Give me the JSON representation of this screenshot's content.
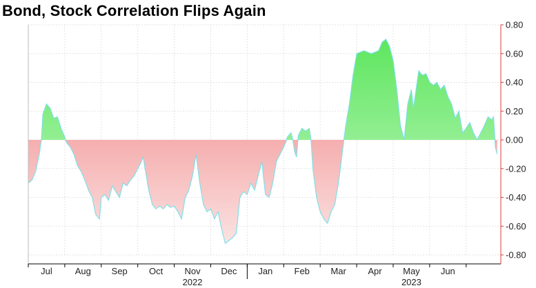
{
  "chart_data": {
    "type": "area",
    "title": "Bond, Stock Correlation Flips Again",
    "xlabel": "",
    "ylabel": "",
    "ylim": [
      -0.8,
      0.8
    ],
    "yticks": [
      "0.80",
      "0.60",
      "0.40",
      "0.20",
      "0.00",
      "-0.20",
      "-0.40",
      "-0.60",
      "-0.80"
    ],
    "month_labels": [
      "Jul",
      "Aug",
      "Sep",
      "Oct",
      "Nov",
      "Dec",
      "Jan",
      "Feb",
      "Mar",
      "Apr",
      "May",
      "Jun"
    ],
    "year_labels": [
      {
        "label": "2022",
        "month": "Sep-Dec"
      },
      {
        "label": "2023",
        "month": "Mar-Jun"
      }
    ],
    "grid": true,
    "axis_side": "right",
    "colors": {
      "positive": "#7ef07e",
      "negative": "#f08080",
      "line": "#7fe0e8",
      "zero": "#e0393a"
    },
    "x_units": "months since Jun 1, 2022",
    "series": [
      {
        "name": "",
        "points": [
          [
            0.0,
            -0.3
          ],
          [
            0.1,
            -0.28
          ],
          [
            0.2,
            -0.22
          ],
          [
            0.3,
            -0.1
          ],
          [
            0.36,
            0.0
          ],
          [
            0.4,
            0.18
          ],
          [
            0.5,
            0.25
          ],
          [
            0.6,
            0.22
          ],
          [
            0.7,
            0.15
          ],
          [
            0.8,
            0.16
          ],
          [
            0.9,
            0.08
          ],
          [
            1.0,
            0.02
          ],
          [
            1.05,
            -0.02
          ],
          [
            1.15,
            -0.05
          ],
          [
            1.25,
            -0.1
          ],
          [
            1.35,
            -0.18
          ],
          [
            1.45,
            -0.22
          ],
          [
            1.55,
            -0.28
          ],
          [
            1.65,
            -0.35
          ],
          [
            1.75,
            -0.4
          ],
          [
            1.85,
            -0.52
          ],
          [
            1.95,
            -0.55
          ],
          [
            2.0,
            -0.4
          ],
          [
            2.1,
            -0.38
          ],
          [
            2.2,
            -0.42
          ],
          [
            2.3,
            -0.32
          ],
          [
            2.4,
            -0.36
          ],
          [
            2.5,
            -0.4
          ],
          [
            2.6,
            -0.3
          ],
          [
            2.7,
            -0.32
          ],
          [
            2.8,
            -0.28
          ],
          [
            2.9,
            -0.25
          ],
          [
            3.0,
            -0.2
          ],
          [
            3.1,
            -0.15
          ],
          [
            3.15,
            -0.12
          ],
          [
            3.2,
            -0.2
          ],
          [
            3.3,
            -0.35
          ],
          [
            3.4,
            -0.45
          ],
          [
            3.5,
            -0.48
          ],
          [
            3.6,
            -0.46
          ],
          [
            3.7,
            -0.48
          ],
          [
            3.8,
            -0.45
          ],
          [
            3.9,
            -0.47
          ],
          [
            4.0,
            -0.46
          ],
          [
            4.1,
            -0.5
          ],
          [
            4.2,
            -0.55
          ],
          [
            4.3,
            -0.4
          ],
          [
            4.4,
            -0.35
          ],
          [
            4.5,
            -0.25
          ],
          [
            4.6,
            -0.1
          ],
          [
            4.7,
            -0.3
          ],
          [
            4.8,
            -0.45
          ],
          [
            4.9,
            -0.5
          ],
          [
            5.0,
            -0.48
          ],
          [
            5.1,
            -0.55
          ],
          [
            5.2,
            -0.5
          ],
          [
            5.3,
            -0.62
          ],
          [
            5.4,
            -0.72
          ],
          [
            5.5,
            -0.7
          ],
          [
            5.6,
            -0.68
          ],
          [
            5.7,
            -0.65
          ],
          [
            5.8,
            -0.4
          ],
          [
            5.9,
            -0.36
          ],
          [
            6.0,
            -0.38
          ],
          [
            6.1,
            -0.3
          ],
          [
            6.2,
            -0.35
          ],
          [
            6.3,
            -0.25
          ],
          [
            6.4,
            -0.15
          ],
          [
            6.5,
            -0.38
          ],
          [
            6.6,
            -0.4
          ],
          [
            6.7,
            -0.3
          ],
          [
            6.8,
            -0.15
          ],
          [
            6.9,
            -0.1
          ],
          [
            7.0,
            -0.05
          ],
          [
            7.05,
            -0.02
          ],
          [
            7.1,
            0.02
          ],
          [
            7.2,
            0.05
          ],
          [
            7.25,
            0.0
          ],
          [
            7.3,
            -0.08
          ],
          [
            7.35,
            -0.12
          ],
          [
            7.4,
            0.03
          ],
          [
            7.5,
            0.08
          ],
          [
            7.6,
            0.06
          ],
          [
            7.7,
            0.08
          ],
          [
            7.75,
            0.0
          ],
          [
            7.8,
            -0.2
          ],
          [
            7.9,
            -0.4
          ],
          [
            8.0,
            -0.5
          ],
          [
            8.1,
            -0.55
          ],
          [
            8.2,
            -0.58
          ],
          [
            8.3,
            -0.5
          ],
          [
            8.4,
            -0.45
          ],
          [
            8.5,
            -0.3
          ],
          [
            8.6,
            -0.1
          ],
          [
            8.65,
            0.0
          ],
          [
            8.7,
            0.1
          ],
          [
            8.8,
            0.25
          ],
          [
            8.9,
            0.45
          ],
          [
            9.0,
            0.6
          ],
          [
            9.2,
            0.62
          ],
          [
            9.4,
            0.6
          ],
          [
            9.6,
            0.62
          ],
          [
            9.7,
            0.68
          ],
          [
            9.8,
            0.7
          ],
          [
            9.9,
            0.65
          ],
          [
            10.0,
            0.55
          ],
          [
            10.1,
            0.35
          ],
          [
            10.2,
            0.1
          ],
          [
            10.3,
            0.0
          ],
          [
            10.4,
            0.25
          ],
          [
            10.5,
            0.35
          ],
          [
            10.55,
            0.22
          ],
          [
            10.6,
            0.3
          ],
          [
            10.7,
            0.48
          ],
          [
            10.8,
            0.45
          ],
          [
            10.9,
            0.46
          ],
          [
            11.0,
            0.4
          ],
          [
            11.1,
            0.38
          ],
          [
            11.2,
            0.4
          ],
          [
            11.3,
            0.35
          ],
          [
            11.4,
            0.38
          ],
          [
            11.5,
            0.3
          ],
          [
            11.6,
            0.25
          ],
          [
            11.7,
            0.15
          ],
          [
            11.8,
            0.2
          ],
          [
            11.9,
            0.05
          ],
          [
            12.0,
            0.08
          ],
          [
            12.1,
            0.12
          ],
          [
            12.2,
            0.05
          ],
          [
            12.3,
            0.0
          ],
          [
            12.4,
            0.05
          ],
          [
            12.5,
            0.1
          ],
          [
            12.6,
            0.16
          ],
          [
            12.7,
            0.14
          ],
          [
            12.75,
            0.16
          ],
          [
            12.8,
            -0.05
          ],
          [
            12.85,
            -0.1
          ]
        ]
      }
    ]
  }
}
